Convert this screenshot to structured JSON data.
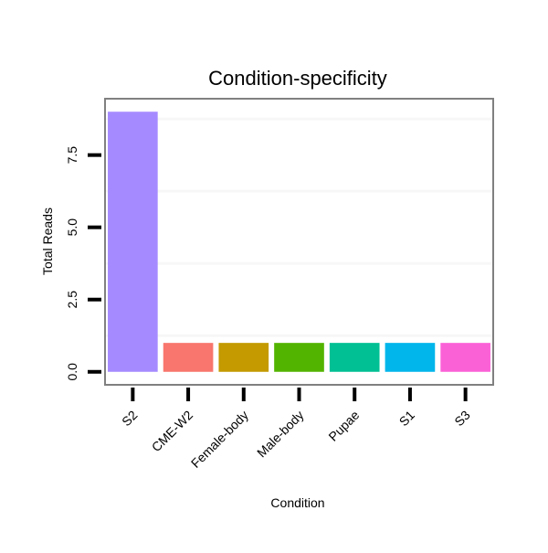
{
  "chart_data": {
    "type": "bar",
    "title": "Condition-specificity",
    "xlabel": "Condition",
    "ylabel": "Total Reads",
    "categories": [
      "S2",
      "CME-W2",
      "Female-body",
      "Male-body",
      "Pupae",
      "S1",
      "S3"
    ],
    "values": [
      9,
      1,
      1,
      1,
      1,
      1,
      1
    ],
    "colors": [
      "#A58AFF",
      "#F8766D",
      "#C49A00",
      "#53B400",
      "#00C094",
      "#00B6EB",
      "#FB61D7"
    ],
    "ylim": [
      -0.45,
      9.45
    ],
    "yticks": [
      0,
      2.5,
      5,
      7.5
    ],
    "ytick_labels": [
      "0.0",
      "2.5",
      "5.0",
      "7.5"
    ],
    "minor_gridlines": [
      1.25,
      3.75,
      6.25,
      8.75
    ],
    "grid": true,
    "legend": "none"
  }
}
